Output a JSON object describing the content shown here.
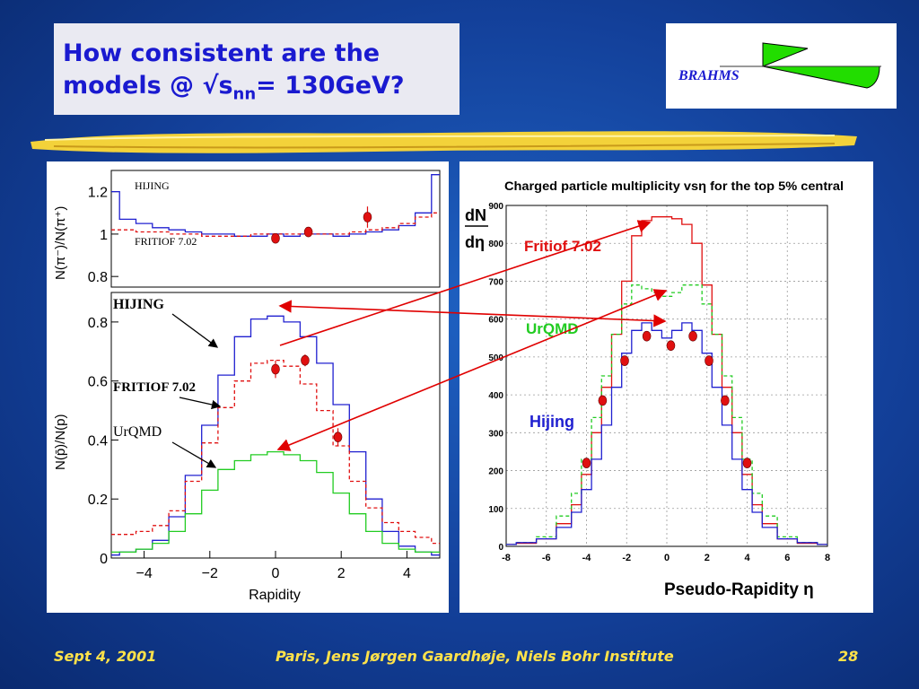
{
  "slide": {
    "title_line1": "How consistent are the",
    "title_line2_pre": "models @ √s",
    "title_line2_sub": "nn",
    "title_line2_post": "= 130GeV?",
    "logo_text": "BRAHMS",
    "footer_date": "Sept 4, 2001",
    "footer_author": "Paris,  Jens Jørgen Gaardhøje, Niels Bohr Institute",
    "page_number": "28",
    "colors": {
      "title": "#1a1ad0",
      "footer": "#ffe24a",
      "arrow": "#e00000",
      "logo_green": "#22dd00"
    }
  },
  "chart_data": [
    {
      "type": "line",
      "ylabel": "N(π⁻)/N(π⁺)",
      "ylim": [
        0.75,
        1.3
      ],
      "xlim": [
        -5,
        5
      ],
      "yticks": [
        "0.8",
        "1",
        "1.2"
      ],
      "annotations": [
        "HIJING",
        "FRITIOF 7.02"
      ],
      "series": [
        {
          "name": "HIJING",
          "color": "#2020d0",
          "style": "step",
          "x": [
            -5,
            -4.5,
            -4,
            -3.5,
            -3,
            -2.5,
            -2,
            -1.5,
            -1,
            -0.5,
            0,
            0.5,
            1,
            1.5,
            2,
            2.5,
            3,
            3.5,
            4,
            4.5,
            5
          ],
          "y": [
            1.2,
            1.07,
            1.05,
            1.03,
            1.02,
            1.01,
            1.0,
            1.0,
            0.99,
            0.99,
            1.0,
            0.99,
            1.0,
            1.0,
            0.99,
            1.0,
            1.01,
            1.02,
            1.04,
            1.1,
            1.28
          ]
        },
        {
          "name": "FRITIOF 7.02",
          "color": "#e01010",
          "style": "dashed",
          "x": [
            -5,
            -4.5,
            -4,
            -3.5,
            -3,
            -2.5,
            -2,
            -1.5,
            -1,
            -0.5,
            0,
            0.5,
            1,
            1.5,
            2,
            2.5,
            3,
            3.5,
            4,
            4.5,
            5
          ],
          "y": [
            1.02,
            1.02,
            1.01,
            1.01,
            1.0,
            1.0,
            0.99,
            0.99,
            0.99,
            1.0,
            1.0,
            1.0,
            1.0,
            1.0,
            1.0,
            1.01,
            1.02,
            1.03,
            1.05,
            1.08,
            1.1
          ]
        },
        {
          "name": "data",
          "color": "#e01010",
          "style": "points",
          "x": [
            0,
            1,
            2.8
          ],
          "y": [
            0.98,
            1.01,
            1.08
          ],
          "err": [
            0.01,
            0.01,
            0.05
          ]
        }
      ]
    },
    {
      "type": "line",
      "xlabel": "Rapidity",
      "ylabel": "N(p̄)/N(p)",
      "xlim": [
        -5,
        5
      ],
      "ylim": [
        0,
        0.9
      ],
      "xticks": [
        "-4",
        "-2",
        "0",
        "2",
        "4"
      ],
      "yticks": [
        "0",
        "0.2",
        "0.4",
        "0.6",
        "0.8"
      ],
      "annotations": [
        "HIJING",
        "FRITIOF 7.02",
        "UrQMD"
      ],
      "series": [
        {
          "name": "HIJING",
          "color": "#2020d0",
          "style": "step",
          "x": [
            -5,
            -4.5,
            -4,
            -3.5,
            -3,
            -2.5,
            -2,
            -1.5,
            -1,
            -0.5,
            0,
            0.5,
            1,
            1.5,
            2,
            2.5,
            3,
            3.5,
            4,
            4.5,
            5
          ],
          "y": [
            0.01,
            0.02,
            0.03,
            0.06,
            0.14,
            0.28,
            0.45,
            0.62,
            0.75,
            0.81,
            0.82,
            0.8,
            0.75,
            0.66,
            0.52,
            0.36,
            0.2,
            0.09,
            0.04,
            0.02,
            0.01
          ]
        },
        {
          "name": "FRITIOF 7.02",
          "color": "#e01010",
          "style": "dashed",
          "x": [
            -5,
            -4.5,
            -4,
            -3.5,
            -3,
            -2.5,
            -2,
            -1.5,
            -1,
            -0.5,
            0,
            0.5,
            1,
            1.5,
            2,
            2.5,
            3,
            3.5,
            4,
            4.5,
            5
          ],
          "y": [
            0.08,
            0.08,
            0.09,
            0.11,
            0.16,
            0.26,
            0.39,
            0.51,
            0.6,
            0.66,
            0.67,
            0.65,
            0.59,
            0.5,
            0.38,
            0.26,
            0.17,
            0.12,
            0.09,
            0.07,
            0.05
          ]
        },
        {
          "name": "UrQMD",
          "color": "#22cc22",
          "style": "step",
          "x": [
            -5,
            -4.5,
            -4,
            -3.5,
            -3,
            -2.5,
            -2,
            -1.5,
            -1,
            -0.5,
            0,
            0.5,
            1,
            1.5,
            2,
            2.5,
            3,
            3.5,
            4,
            4.5,
            5
          ],
          "y": [
            0.02,
            0.02,
            0.03,
            0.05,
            0.09,
            0.15,
            0.23,
            0.3,
            0.33,
            0.35,
            0.36,
            0.35,
            0.33,
            0.29,
            0.22,
            0.15,
            0.09,
            0.05,
            0.03,
            0.02,
            0.02
          ]
        },
        {
          "name": "data",
          "color": "#e01010",
          "style": "points",
          "x": [
            0,
            0.9,
            1.9
          ],
          "y": [
            0.64,
            0.67,
            0.41
          ],
          "err": [
            0.03,
            0.02,
            0.03
          ]
        }
      ]
    },
    {
      "type": "line",
      "title": "Charged particle multiplicity vsη for the top 5% central",
      "xlabel": "Pseudo-Rapidity η",
      "ylabel_num": "dN",
      "ylabel_den": "dη",
      "xlim": [
        -8,
        8
      ],
      "ylim": [
        0,
        900
      ],
      "xticks": [
        "-8",
        "-6",
        "-4",
        "-2",
        "0",
        "2",
        "4",
        "6",
        "8"
      ],
      "yticks": [
        "0",
        "100",
        "200",
        "300",
        "400",
        "500",
        "600",
        "700",
        "800",
        "900"
      ],
      "grid": true,
      "annotations": [
        "Fritiof 7.02",
        "UrQMD",
        "Hijing"
      ],
      "series": [
        {
          "name": "Fritiof 7.02",
          "color": "#e01010",
          "style": "step",
          "x": [
            -8,
            -7,
            -6,
            -5,
            -4.5,
            -4,
            -3.5,
            -3,
            -2.5,
            -2,
            -1.5,
            -1,
            -0.5,
            0,
            0.5,
            1,
            1.5,
            2,
            2.5,
            3,
            3.5,
            4,
            4.5,
            5,
            6,
            7,
            8
          ],
          "y": [
            5,
            8,
            20,
            60,
            110,
            190,
            300,
            420,
            560,
            700,
            820,
            860,
            870,
            870,
            865,
            850,
            800,
            690,
            560,
            420,
            300,
            190,
            110,
            60,
            20,
            8,
            5
          ]
        },
        {
          "name": "UrQMD",
          "color": "#22cc22",
          "style": "step-dashed",
          "x": [
            -8,
            -7,
            -6,
            -5,
            -4.5,
            -4,
            -3.5,
            -3,
            -2.5,
            -2,
            -1.5,
            -1,
            -0.5,
            0,
            0.5,
            1,
            1.5,
            2,
            2.5,
            3,
            3.5,
            4,
            4.5,
            5,
            6,
            7,
            8
          ],
          "y": [
            5,
            10,
            25,
            80,
            140,
            230,
            340,
            450,
            560,
            640,
            690,
            680,
            670,
            660,
            670,
            690,
            690,
            640,
            560,
            450,
            340,
            230,
            140,
            80,
            25,
            10,
            5
          ]
        },
        {
          "name": "Hijing",
          "color": "#2020d0",
          "style": "step",
          "x": [
            -8,
            -7,
            -6,
            -5,
            -4.5,
            -4,
            -3.5,
            -3,
            -2.5,
            -2,
            -1.5,
            -1,
            -0.5,
            0,
            0.5,
            1,
            1.5,
            2,
            2.5,
            3,
            3.5,
            4,
            4.5,
            5,
            6,
            7,
            8
          ],
          "y": [
            5,
            10,
            20,
            50,
            90,
            150,
            230,
            320,
            420,
            510,
            570,
            590,
            570,
            550,
            570,
            590,
            570,
            510,
            420,
            320,
            230,
            150,
            90,
            50,
            20,
            10,
            5
          ]
        },
        {
          "name": "data",
          "color": "#e01010",
          "style": "points",
          "x": [
            -4,
            -3.2,
            -2.1,
            -1,
            0.2,
            1.3,
            2.1,
            2.9,
            4
          ],
          "y": [
            220,
            385,
            490,
            555,
            530,
            555,
            490,
            385,
            220
          ]
        }
      ]
    }
  ]
}
